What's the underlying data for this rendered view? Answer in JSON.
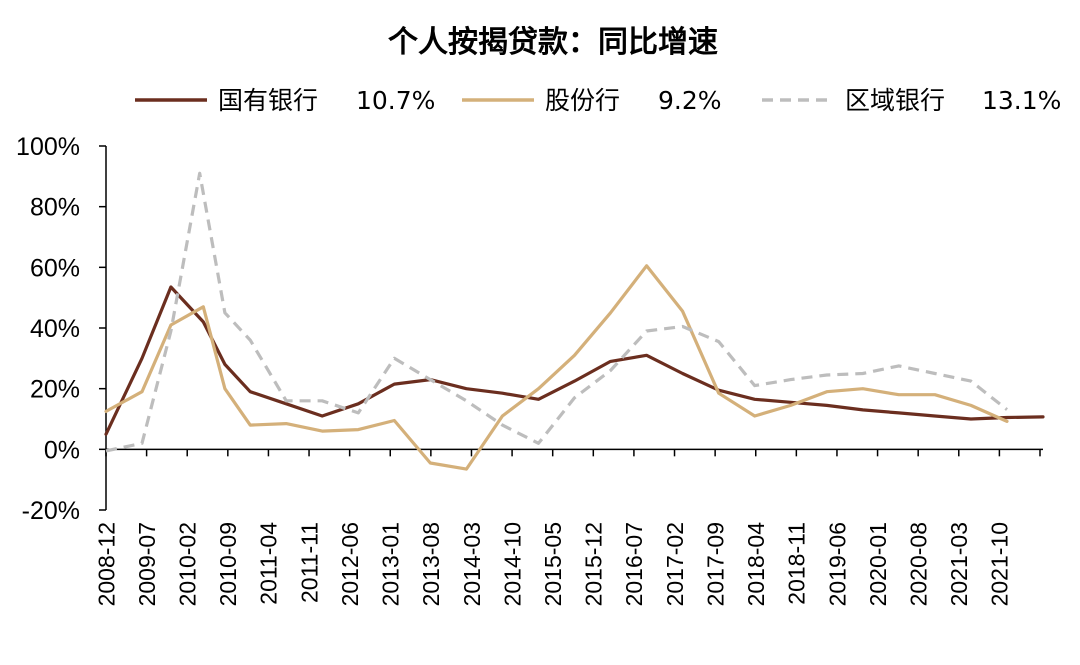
{
  "chart_data": {
    "type": "line",
    "title": "个人按揭贷款：同比增速",
    "xlabel": "",
    "ylabel": "",
    "ylim": [
      -20,
      100
    ],
    "y_ticks": [
      100,
      80,
      60,
      40,
      20,
      0,
      -20
    ],
    "y_tick_labels": [
      "100%",
      "80%",
      "60%",
      "40%",
      "20%",
      "0%",
      "-20%"
    ],
    "x_tick_labels": [
      "2008-12",
      "2009-07",
      "2010-02",
      "2010-09",
      "2011-04",
      "2011-11",
      "2012-06",
      "2013-01",
      "2013-08",
      "2014-03",
      "2014-10",
      "2015-05",
      "2015-12",
      "2016-07",
      "2017-02",
      "2017-09",
      "2018-04",
      "2018-11",
      "2019-06",
      "2020-01",
      "2020-08",
      "2021-03",
      "2021-10"
    ],
    "legend_position": "top",
    "x": [
      0,
      1,
      1.8,
      2.7,
      3.3,
      4,
      5,
      6,
      7,
      8,
      9,
      10,
      11,
      11.6,
      12,
      13,
      13.8,
      14,
      15,
      16,
      17,
      18,
      19,
      20,
      21,
      22,
      22.5
    ],
    "series": [
      {
        "name": "国有银行",
        "label": "10.7%",
        "color": "#6B2E1F",
        "dash": "solid",
        "points": [
          [
            0,
            5
          ],
          [
            1,
            30
          ],
          [
            1.8,
            53.5
          ],
          [
            2.7,
            42
          ],
          [
            3.3,
            28
          ],
          [
            4,
            19
          ],
          [
            5,
            15
          ],
          [
            6,
            11
          ],
          [
            7,
            15
          ],
          [
            8,
            21.5
          ],
          [
            9,
            23
          ],
          [
            10,
            20
          ],
          [
            11,
            18.5
          ],
          [
            12,
            16.5
          ],
          [
            13,
            22.5
          ],
          [
            14,
            29
          ],
          [
            15,
            31
          ],
          [
            16,
            25
          ],
          [
            17,
            19.5
          ],
          [
            18,
            16.5
          ],
          [
            19,
            15.5
          ],
          [
            20,
            14.5
          ],
          [
            21,
            13
          ],
          [
            22,
            12
          ],
          [
            23,
            11
          ],
          [
            24,
            10
          ],
          [
            25,
            10.5
          ],
          [
            26,
            10.7
          ]
        ]
      },
      {
        "name": "股份行",
        "label": "9.2%",
        "color": "#D4B07A",
        "dash": "solid",
        "points": [
          [
            0,
            12.5
          ],
          [
            1,
            19
          ],
          [
            1.8,
            41
          ],
          [
            2.7,
            47
          ],
          [
            3.3,
            20
          ],
          [
            4,
            8
          ],
          [
            5,
            8.5
          ],
          [
            6,
            6
          ],
          [
            7,
            6.5
          ],
          [
            8,
            9.5
          ],
          [
            9,
            -4.5
          ],
          [
            10,
            -6.5
          ],
          [
            11,
            11
          ],
          [
            12,
            20
          ],
          [
            13,
            31
          ],
          [
            14,
            45
          ],
          [
            15,
            60.5
          ],
          [
            16,
            45.5
          ],
          [
            17,
            18.5
          ],
          [
            18,
            11
          ],
          [
            19,
            14.5
          ],
          [
            20,
            19
          ],
          [
            21,
            20
          ],
          [
            22,
            18
          ],
          [
            23,
            18
          ],
          [
            24,
            14.5
          ],
          [
            25,
            9.2
          ]
        ]
      },
      {
        "name": "区域银行",
        "label": "13.1%",
        "color": "#BDBDBD",
        "dash": "dashed",
        "points": [
          [
            0,
            -0.5
          ],
          [
            1,
            2
          ],
          [
            1.8,
            39
          ],
          [
            2.6,
            91
          ],
          [
            3.3,
            45
          ],
          [
            4,
            36
          ],
          [
            5,
            16
          ],
          [
            6,
            16
          ],
          [
            7,
            12
          ],
          [
            8,
            30
          ],
          [
            9,
            23
          ],
          [
            10,
            16
          ],
          [
            11,
            8
          ],
          [
            12,
            2
          ],
          [
            13,
            17
          ],
          [
            14,
            26
          ],
          [
            15,
            39
          ],
          [
            16,
            40.5
          ],
          [
            17,
            35.5
          ],
          [
            18,
            21
          ],
          [
            19,
            23
          ],
          [
            20,
            24.5
          ],
          [
            21,
            25
          ],
          [
            22,
            27.5
          ],
          [
            23,
            25
          ],
          [
            24,
            22.5
          ],
          [
            25,
            13.1
          ]
        ]
      }
    ]
  }
}
